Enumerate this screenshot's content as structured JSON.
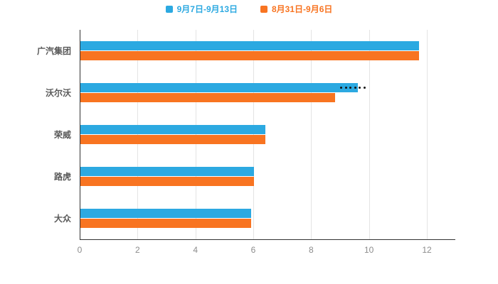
{
  "chart_data": {
    "type": "bar",
    "orientation": "horizontal",
    "title": "",
    "categories": [
      "广汽集团",
      "沃尔沃",
      "荣威",
      "路虎",
      "大众"
    ],
    "series": [
      {
        "name": "9月7日-9月13日",
        "color": "#2CA9E1",
        "values": [
          11.7,
          9.6,
          6.4,
          6.0,
          5.9
        ]
      },
      {
        "name": "8月31日-9月6日",
        "color": "#F87421",
        "values": [
          11.7,
          8.8,
          6.4,
          6.0,
          5.9
        ]
      }
    ],
    "xticks": [
      0,
      2,
      4,
      6,
      8,
      10,
      12
    ],
    "xlim": [
      0,
      12
    ],
    "xlabel": "",
    "ylabel": "",
    "grid": "vertical",
    "legend_position": "top",
    "annotation": {
      "category": "沃尔沃",
      "series": "9月7日-9月13日",
      "style": "dotted",
      "from": 9.0,
      "to": 9.8
    }
  },
  "legend": {
    "items": [
      {
        "label": "9月7日-9月13日",
        "color": "#2CA9E1"
      },
      {
        "label": "8月31日-9月6日",
        "color": "#F87421"
      }
    ]
  },
  "colors": {
    "axis": "#333333",
    "gridline": "#e4e4e4",
    "tick_text": "#8c8c8c",
    "category_text": "#595959",
    "background": "#ffffff",
    "annotation_dot": "#141414"
  }
}
